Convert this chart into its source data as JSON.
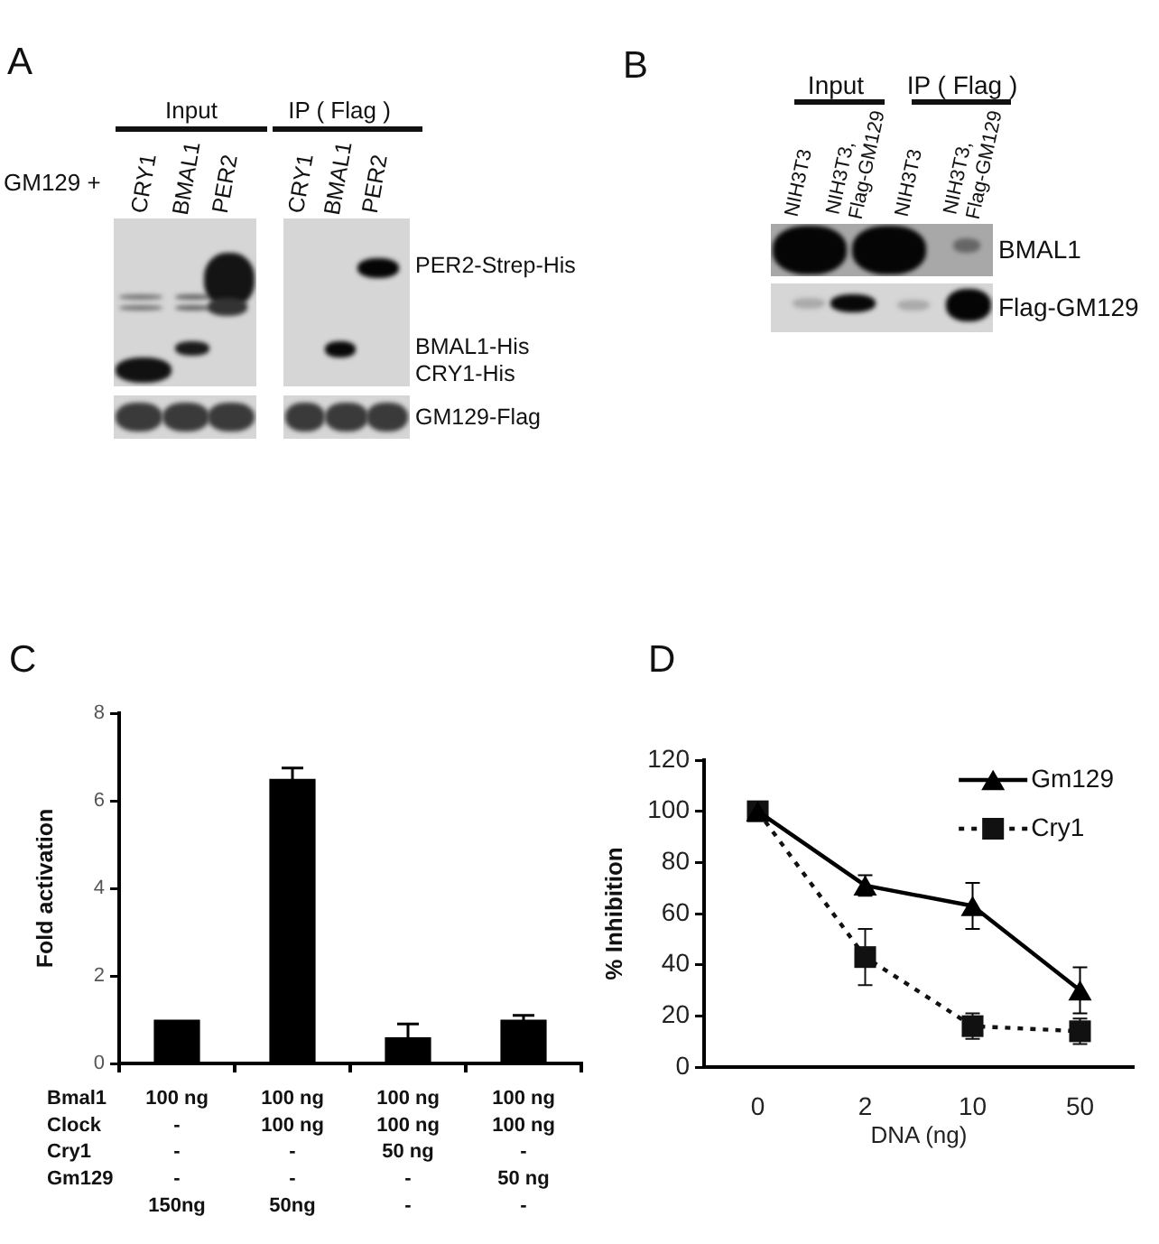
{
  "chart_data": [
    {
      "type": "other",
      "title": "A",
      "annotations": [
        "Input",
        "IP ( Flag )",
        "GM129 +",
        "CRY1",
        "BMAL1",
        "PER2",
        "CRY1",
        "BMAL1",
        "PER2",
        "PER2-Strep-His",
        "BMAL1-His",
        "CRY1-His",
        "GM129-Flag"
      ]
    },
    {
      "type": "other",
      "title": "B",
      "annotations": [
        "Input",
        "IP ( Flag )",
        "NIH3T3",
        "NIH3T3, Flag-GM129",
        "NIH3T3",
        "NIH3T3, Flag-GM129",
        "BMAL1",
        "Flag-GM129"
      ]
    },
    {
      "type": "bar",
      "title": "C",
      "ylabel": "Fold activation",
      "categories": [
        "100 ng\n-\n-\n-\n150ng",
        "100 ng\n100 ng\n-\n-\n50ng",
        "100 ng\n100 ng\n50 ng\n-\n-",
        "100 ng\n100 ng\n-\n50 ng\n-"
      ],
      "values": [
        1.0,
        6.5,
        0.6,
        1.0
      ],
      "errors": [
        null,
        0.25,
        0.3,
        0.1
      ],
      "color": "#000000",
      "ylim": [
        0,
        8
      ],
      "yticks": [
        0,
        2,
        4,
        6,
        8
      ],
      "annotations": [
        "Bmal1",
        "Clock",
        "Cry1",
        "Gm129"
      ]
    },
    {
      "type": "line",
      "title": "D",
      "xlabel": "DNA (ng)",
      "ylabel": "% Inhibition",
      "categories": [
        "0",
        "2",
        "10",
        "50"
      ],
      "series": [
        {
          "name": "Gm129",
          "color": "#000000",
          "values": [
            100,
            71,
            63,
            30
          ],
          "errors": [
            null,
            4,
            9,
            9
          ],
          "marker": "triangle",
          "line_style": "solid"
        },
        {
          "name": "Cry1",
          "color": "#111111",
          "values": [
            100,
            43,
            16,
            14
          ],
          "errors": [
            null,
            11,
            5,
            5
          ],
          "marker": "square",
          "line_style": "dotted"
        }
      ],
      "ylim": [
        0,
        120
      ],
      "yticks": [
        0,
        20,
        40,
        60,
        80,
        100,
        120
      ],
      "legend": "top right"
    }
  ]
}
